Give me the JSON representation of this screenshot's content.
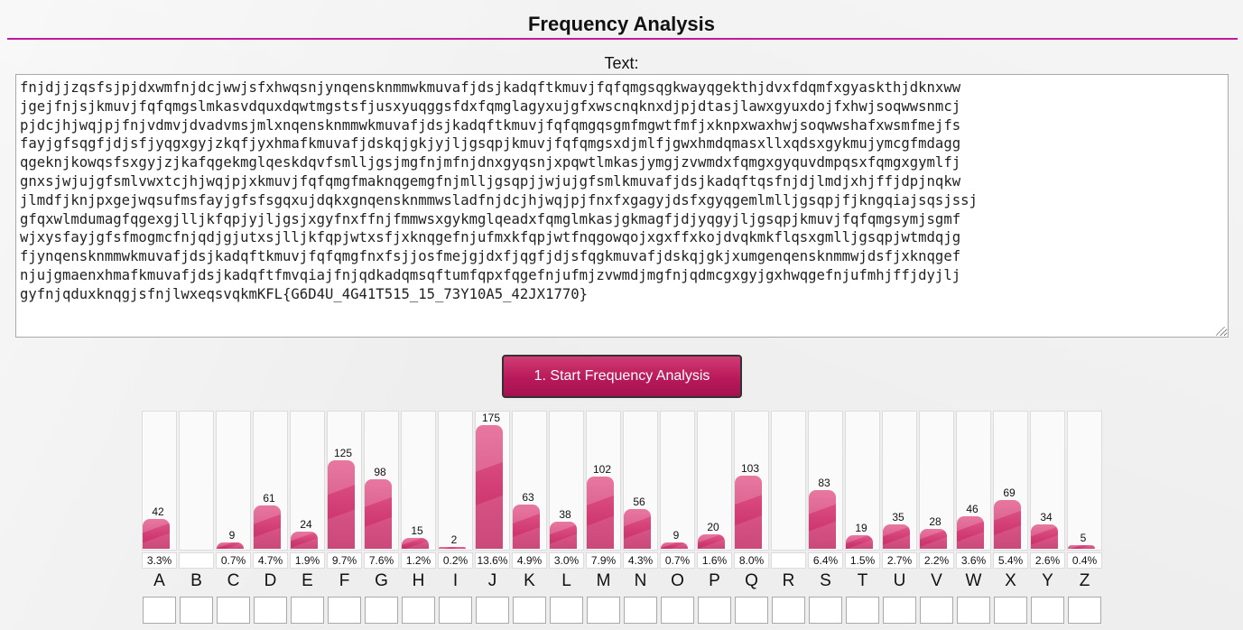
{
  "header": {
    "title": "Frequency Analysis",
    "accent_color": "#c2199a"
  },
  "text_section": {
    "label": "Text:",
    "content": "fnjdjjzqsfsjpjdxwmfnjdcjwwjsfxhwqsnjynqensknmmwkmuvafjdsjkadqftkmuvjfqfqmgsqgkwayqgekthjdvxfdqmfxgyaskthjdknxww\njgejfnjsjkmuvjfqfqmgslmkasvdquxdqwtmgstsfjusxyuqggsfdxfqmglagyxujgfxwscnqknxdjpjdtasjlawxgyuxdojfxhwjsoqwwsnmcj\npjdcjhjwqjpjfnjvdmvjdvadvmsjmlxnqensknmmwkmuvafjdsjkadqftkmuvjfqfqmgqsgmfmgwtfmfjxknpxwaxhwjsoqwwshafxwsmfmejfs\nfayjgfsqgfjdjsfjyqgxgyjzkqfjyxhmafkmuvafjdskqjgkjyjljgsqpjkmuvjfqfqmgsxdjmlfjgwxhmdqmasxllxqdsxgykmujymcgfmdagg\nqgeknjkowqsfsxgyjzjkafqgekmglqeskdqvfsmlljgsjmgfnjmfnjdnxgyqsnjxpqwtlmkasjymgjzvwmdxfqmgxgyquvdmpqsxfqmgxgymlfj\ngnxsjwjujgfsmlvwxtcjhjwqjpjxkmuvjfqfqmgfmaknqgemgfnjmlljgsqpjjwjujgfsmlkmuvafjdsjkadqftqsfnjdjlmdjxhjffjdpjnqkw\njlmdfjknjpxgejwqsufmsfayjgfsfsgqxujdqkxgnqensknmmwsladfnjdcjhjwqjpjfnxfxgagyjdsfxgyqgemlmlljgsqpjfjkngqiajsqsjssj\ngfqxwlmdumagfqgexgjlljkfqpjyjljgsjxgyfnxffnjfmmwsxgykmglqeadxfqmglmkasjgkmagfjdjyqgyjljgsqpjkmuvjfqfqmgsymjsgmf\nwjxysfayjgfsfmogmcfnjqdjgjutxsjlljkfqpjwtxsfjxknqgefnjufmxkfqpjwtfnqgowqojxgxffxkojdvqkmkflqsxgmlljgsqpjwtmdqjg\nfjynqensknmmwkmuvafjdsjkadqftkmuvjfqfqmgfnxfsjjosfmejgjdxfjqgfjdjsfqgkmuvafjdskqjgkjxumgenqensknmmwjdsfjxknqgef\nnjujgmaenxhmafkmuvafjdsjkadqftfmvqiajfnjqdkadqmsqftumfqpxfqgefnjufmjzvwmdjmgfnjqdmcgxgyjgxhwqgefnjufmhjffjdyjlj\ngyfnjqduxknqgjsfnjlwxeqsvqkmKFL{G6D4U_4G41T515_15_73Y10A5_42JX1770}"
  },
  "actions": {
    "start_label": "1. Start Frequency Analysis"
  },
  "bar_color": "#cf3a72",
  "frequency": {
    "max_count": 175,
    "letters": [
      {
        "letter": "A",
        "count": "42",
        "percent": "3.3%",
        "value": 42
      },
      {
        "letter": "B",
        "count": "",
        "percent": "",
        "value": 0
      },
      {
        "letter": "C",
        "count": "9",
        "percent": "0.7%",
        "value": 9
      },
      {
        "letter": "D",
        "count": "61",
        "percent": "4.7%",
        "value": 61
      },
      {
        "letter": "E",
        "count": "24",
        "percent": "1.9%",
        "value": 24
      },
      {
        "letter": "F",
        "count": "125",
        "percent": "9.7%",
        "value": 125
      },
      {
        "letter": "G",
        "count": "98",
        "percent": "7.6%",
        "value": 98
      },
      {
        "letter": "H",
        "count": "15",
        "percent": "1.2%",
        "value": 15
      },
      {
        "letter": "I",
        "count": "2",
        "percent": "0.2%",
        "value": 2
      },
      {
        "letter": "J",
        "count": "175",
        "percent": "13.6%",
        "value": 175
      },
      {
        "letter": "K",
        "count": "63",
        "percent": "4.9%",
        "value": 63
      },
      {
        "letter": "L",
        "count": "38",
        "percent": "3.0%",
        "value": 38
      },
      {
        "letter": "M",
        "count": "102",
        "percent": "7.9%",
        "value": 102
      },
      {
        "letter": "N",
        "count": "56",
        "percent": "4.3%",
        "value": 56
      },
      {
        "letter": "O",
        "count": "9",
        "percent": "0.7%",
        "value": 9
      },
      {
        "letter": "P",
        "count": "20",
        "percent": "1.6%",
        "value": 20
      },
      {
        "letter": "Q",
        "count": "103",
        "percent": "8.0%",
        "value": 103
      },
      {
        "letter": "R",
        "count": "",
        "percent": "",
        "value": 0
      },
      {
        "letter": "S",
        "count": "83",
        "percent": "6.4%",
        "value": 83
      },
      {
        "letter": "T",
        "count": "19",
        "percent": "1.5%",
        "value": 19
      },
      {
        "letter": "U",
        "count": "35",
        "percent": "2.7%",
        "value": 35
      },
      {
        "letter": "V",
        "count": "28",
        "percent": "2.2%",
        "value": 28
      },
      {
        "letter": "W",
        "count": "46",
        "percent": "3.6%",
        "value": 46
      },
      {
        "letter": "X",
        "count": "69",
        "percent": "5.4%",
        "value": 69
      },
      {
        "letter": "Y",
        "count": "34",
        "percent": "2.6%",
        "value": 34
      },
      {
        "letter": "Z",
        "count": "5",
        "percent": "0.4%",
        "value": 5
      }
    ]
  }
}
